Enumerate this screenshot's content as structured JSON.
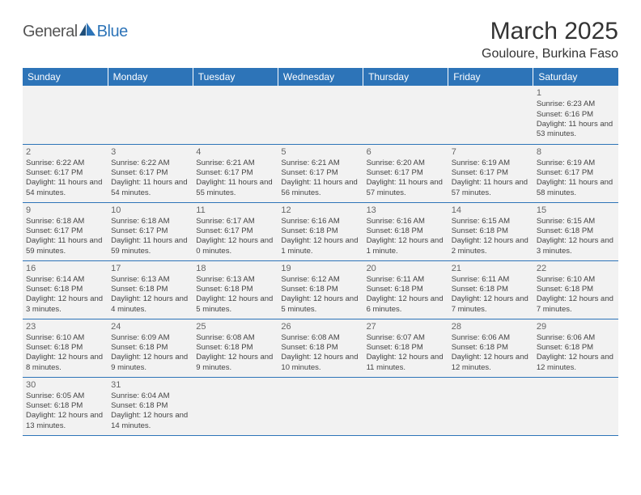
{
  "logo": {
    "part1": "General",
    "part2": "Blue"
  },
  "header": {
    "month_title": "March 2025",
    "location": "Gouloure, Burkina Faso"
  },
  "colors": {
    "header_bg": "#2d74b8",
    "header_fg": "#ffffff",
    "cell_bg": "#f2f2f2",
    "border": "#2d74b8",
    "logo_gray": "#555555",
    "logo_blue": "#2d74b8"
  },
  "weekdays": [
    "Sunday",
    "Monday",
    "Tuesday",
    "Wednesday",
    "Thursday",
    "Friday",
    "Saturday"
  ],
  "weeks": [
    [
      null,
      null,
      null,
      null,
      null,
      null,
      {
        "day": "1",
        "sunrise": "Sunrise: 6:23 AM",
        "sunset": "Sunset: 6:16 PM",
        "daylight": "Daylight: 11 hours and 53 minutes."
      }
    ],
    [
      {
        "day": "2",
        "sunrise": "Sunrise: 6:22 AM",
        "sunset": "Sunset: 6:17 PM",
        "daylight": "Daylight: 11 hours and 54 minutes."
      },
      {
        "day": "3",
        "sunrise": "Sunrise: 6:22 AM",
        "sunset": "Sunset: 6:17 PM",
        "daylight": "Daylight: 11 hours and 54 minutes."
      },
      {
        "day": "4",
        "sunrise": "Sunrise: 6:21 AM",
        "sunset": "Sunset: 6:17 PM",
        "daylight": "Daylight: 11 hours and 55 minutes."
      },
      {
        "day": "5",
        "sunrise": "Sunrise: 6:21 AM",
        "sunset": "Sunset: 6:17 PM",
        "daylight": "Daylight: 11 hours and 56 minutes."
      },
      {
        "day": "6",
        "sunrise": "Sunrise: 6:20 AM",
        "sunset": "Sunset: 6:17 PM",
        "daylight": "Daylight: 11 hours and 57 minutes."
      },
      {
        "day": "7",
        "sunrise": "Sunrise: 6:19 AM",
        "sunset": "Sunset: 6:17 PM",
        "daylight": "Daylight: 11 hours and 57 minutes."
      },
      {
        "day": "8",
        "sunrise": "Sunrise: 6:19 AM",
        "sunset": "Sunset: 6:17 PM",
        "daylight": "Daylight: 11 hours and 58 minutes."
      }
    ],
    [
      {
        "day": "9",
        "sunrise": "Sunrise: 6:18 AM",
        "sunset": "Sunset: 6:17 PM",
        "daylight": "Daylight: 11 hours and 59 minutes."
      },
      {
        "day": "10",
        "sunrise": "Sunrise: 6:18 AM",
        "sunset": "Sunset: 6:17 PM",
        "daylight": "Daylight: 11 hours and 59 minutes."
      },
      {
        "day": "11",
        "sunrise": "Sunrise: 6:17 AM",
        "sunset": "Sunset: 6:17 PM",
        "daylight": "Daylight: 12 hours and 0 minutes."
      },
      {
        "day": "12",
        "sunrise": "Sunrise: 6:16 AM",
        "sunset": "Sunset: 6:18 PM",
        "daylight": "Daylight: 12 hours and 1 minute."
      },
      {
        "day": "13",
        "sunrise": "Sunrise: 6:16 AM",
        "sunset": "Sunset: 6:18 PM",
        "daylight": "Daylight: 12 hours and 1 minute."
      },
      {
        "day": "14",
        "sunrise": "Sunrise: 6:15 AM",
        "sunset": "Sunset: 6:18 PM",
        "daylight": "Daylight: 12 hours and 2 minutes."
      },
      {
        "day": "15",
        "sunrise": "Sunrise: 6:15 AM",
        "sunset": "Sunset: 6:18 PM",
        "daylight": "Daylight: 12 hours and 3 minutes."
      }
    ],
    [
      {
        "day": "16",
        "sunrise": "Sunrise: 6:14 AM",
        "sunset": "Sunset: 6:18 PM",
        "daylight": "Daylight: 12 hours and 3 minutes."
      },
      {
        "day": "17",
        "sunrise": "Sunrise: 6:13 AM",
        "sunset": "Sunset: 6:18 PM",
        "daylight": "Daylight: 12 hours and 4 minutes."
      },
      {
        "day": "18",
        "sunrise": "Sunrise: 6:13 AM",
        "sunset": "Sunset: 6:18 PM",
        "daylight": "Daylight: 12 hours and 5 minutes."
      },
      {
        "day": "19",
        "sunrise": "Sunrise: 6:12 AM",
        "sunset": "Sunset: 6:18 PM",
        "daylight": "Daylight: 12 hours and 5 minutes."
      },
      {
        "day": "20",
        "sunrise": "Sunrise: 6:11 AM",
        "sunset": "Sunset: 6:18 PM",
        "daylight": "Daylight: 12 hours and 6 minutes."
      },
      {
        "day": "21",
        "sunrise": "Sunrise: 6:11 AM",
        "sunset": "Sunset: 6:18 PM",
        "daylight": "Daylight: 12 hours and 7 minutes."
      },
      {
        "day": "22",
        "sunrise": "Sunrise: 6:10 AM",
        "sunset": "Sunset: 6:18 PM",
        "daylight": "Daylight: 12 hours and 7 minutes."
      }
    ],
    [
      {
        "day": "23",
        "sunrise": "Sunrise: 6:10 AM",
        "sunset": "Sunset: 6:18 PM",
        "daylight": "Daylight: 12 hours and 8 minutes."
      },
      {
        "day": "24",
        "sunrise": "Sunrise: 6:09 AM",
        "sunset": "Sunset: 6:18 PM",
        "daylight": "Daylight: 12 hours and 9 minutes."
      },
      {
        "day": "25",
        "sunrise": "Sunrise: 6:08 AM",
        "sunset": "Sunset: 6:18 PM",
        "daylight": "Daylight: 12 hours and 9 minutes."
      },
      {
        "day": "26",
        "sunrise": "Sunrise: 6:08 AM",
        "sunset": "Sunset: 6:18 PM",
        "daylight": "Daylight: 12 hours and 10 minutes."
      },
      {
        "day": "27",
        "sunrise": "Sunrise: 6:07 AM",
        "sunset": "Sunset: 6:18 PM",
        "daylight": "Daylight: 12 hours and 11 minutes."
      },
      {
        "day": "28",
        "sunrise": "Sunrise: 6:06 AM",
        "sunset": "Sunset: 6:18 PM",
        "daylight": "Daylight: 12 hours and 12 minutes."
      },
      {
        "day": "29",
        "sunrise": "Sunrise: 6:06 AM",
        "sunset": "Sunset: 6:18 PM",
        "daylight": "Daylight: 12 hours and 12 minutes."
      }
    ],
    [
      {
        "day": "30",
        "sunrise": "Sunrise: 6:05 AM",
        "sunset": "Sunset: 6:18 PM",
        "daylight": "Daylight: 12 hours and 13 minutes."
      },
      {
        "day": "31",
        "sunrise": "Sunrise: 6:04 AM",
        "sunset": "Sunset: 6:18 PM",
        "daylight": "Daylight: 12 hours and 14 minutes."
      },
      null,
      null,
      null,
      null,
      null
    ]
  ]
}
